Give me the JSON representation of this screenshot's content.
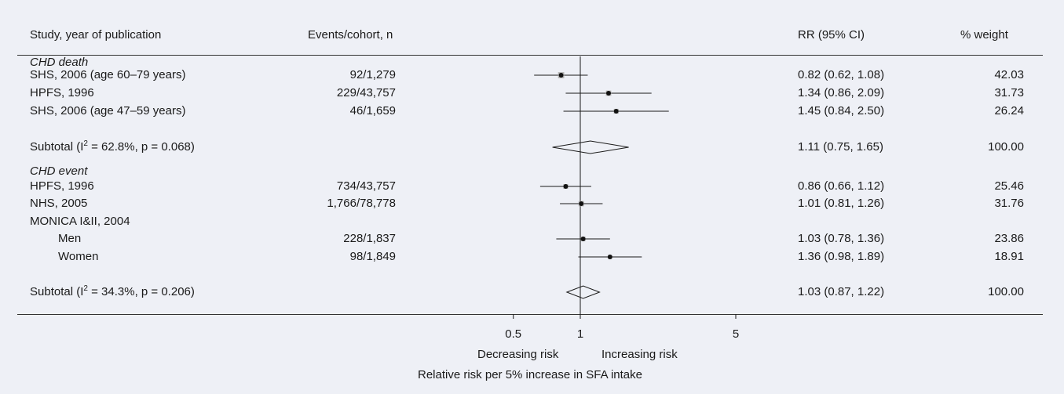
{
  "headers": {
    "study": "Study, year of publication",
    "events": "Events/cohort, n",
    "rr": "RR (95% CI)",
    "weight": "% weight"
  },
  "groups": [
    {
      "name": "CHD death",
      "rows": [
        {
          "label": "SHS, 2006 (age 60–79 years)",
          "events": "92/1,279",
          "rr_text": "0.82 (0.62, 1.08)",
          "weight": "42.03",
          "indent": false
        },
        {
          "label": "HPFS, 1996",
          "events": "229/43,757",
          "rr_text": "1.34 (0.86, 2.09)",
          "weight": "31.73",
          "indent": false
        },
        {
          "label": "SHS, 2006 (age 47–59 years)",
          "events": "46/1,659",
          "rr_text": "1.45 (0.84, 2.50)",
          "weight": "26.24",
          "indent": false
        }
      ],
      "subtotal": {
        "label_pre": "Subtotal (I",
        "sup": "2",
        "label_post": " = 62.8%, p = 0.068)",
        "rr_text": "1.11 (0.75, 1.65)",
        "weight": "100.00"
      }
    },
    {
      "name": "CHD event",
      "rows": [
        {
          "label": "HPFS, 1996",
          "events": "734/43,757",
          "rr_text": "0.86 (0.66, 1.12)",
          "weight": "25.46",
          "indent": false
        },
        {
          "label": "NHS, 2005",
          "events": "1,766/78,778",
          "rr_text": "1.01 (0.81, 1.26)",
          "weight": "31.76",
          "indent": false
        },
        {
          "label": "MONICA I&II, 2004",
          "events": "",
          "rr_text": "",
          "weight": "",
          "indent": false
        },
        {
          "label": "Men",
          "events": "228/1,837",
          "rr_text": "1.03 (0.78, 1.36)",
          "weight": "23.86",
          "indent": true
        },
        {
          "label": "Women",
          "events": "98/1,849",
          "rr_text": "1.36 (0.98, 1.89)",
          "weight": "18.91",
          "indent": true
        }
      ],
      "subtotal": {
        "label_pre": "Subtotal (I",
        "sup": "2",
        "label_post": " = 34.3%, p = 0.206)",
        "rr_text": "1.03 (0.87, 1.22)",
        "weight": "100.00"
      }
    }
  ],
  "axis": {
    "ticks": [
      "0.5",
      "1",
      "5"
    ],
    "left_label": "Decreasing risk",
    "right_label": "Increasing risk",
    "xlabel": "Relative risk per 5% increase in SFA intake"
  },
  "chart_data": {
    "type": "scatter",
    "subtype": "forest",
    "scale": "log",
    "reference": 1,
    "ticks": [
      0.5,
      1,
      5
    ],
    "xlabel": "Relative risk per 5% increase in SFA intake",
    "series": [
      {
        "name": "CHD death",
        "rows": [
          {
            "study": "SHS, 2006 (age 60–79 years)",
            "rr": 0.82,
            "lo": 0.62,
            "hi": 1.08,
            "weight": 42.03
          },
          {
            "study": "HPFS, 1996",
            "rr": 1.34,
            "lo": 0.86,
            "hi": 2.09,
            "weight": 31.73
          },
          {
            "study": "SHS, 2006 (age 47–59 years)",
            "rr": 1.45,
            "lo": 0.84,
            "hi": 2.5,
            "weight": 26.24
          }
        ],
        "subtotal": {
          "rr": 1.11,
          "lo": 0.75,
          "hi": 1.65,
          "i2": 62.8,
          "p": 0.068
        }
      },
      {
        "name": "CHD event",
        "rows": [
          {
            "study": "HPFS, 1996",
            "rr": 0.86,
            "lo": 0.66,
            "hi": 1.12,
            "weight": 25.46
          },
          {
            "study": "NHS, 2005",
            "rr": 1.01,
            "lo": 0.81,
            "hi": 1.26,
            "weight": 31.76
          },
          {
            "study": "MONICA I&II, 2004 Men",
            "rr": 1.03,
            "lo": 0.78,
            "hi": 1.36,
            "weight": 23.86
          },
          {
            "study": "MONICA I&II, 2004 Women",
            "rr": 1.36,
            "lo": 0.98,
            "hi": 1.89,
            "weight": 18.91
          }
        ],
        "subtotal": {
          "rr": 1.03,
          "lo": 0.87,
          "hi": 1.22,
          "i2": 34.3,
          "p": 0.206
        }
      }
    ]
  }
}
